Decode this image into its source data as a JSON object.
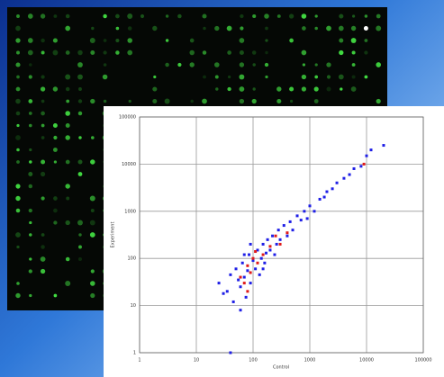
{
  "chart_data": {
    "type": "scatter",
    "xlabel": "Control",
    "ylabel": "Experiment",
    "log_x": true,
    "log_y": true,
    "grid": true,
    "xlim": [
      1,
      100000
    ],
    "ylim": [
      1,
      100000
    ],
    "xticks": [
      1,
      10,
      100,
      1000,
      10000,
      100000
    ],
    "yticks": [
      1,
      10,
      100,
      1000,
      10000,
      100000
    ],
    "series": [
      {
        "color": "#1f1fe6",
        "x": [
          25,
          30,
          40,
          45,
          50,
          55,
          60,
          65,
          70,
          75,
          80,
          85,
          90,
          100,
          110,
          120,
          130,
          140,
          150,
          160,
          170,
          180,
          200,
          220,
          240,
          260,
          280,
          300,
          350,
          400,
          450,
          500,
          600,
          700,
          800,
          900,
          1000,
          1200,
          1500,
          1800,
          2000,
          2500,
          3000,
          4000,
          5000,
          6000,
          8000,
          10000,
          12000,
          20000,
          60,
          90,
          40,
          70,
          150,
          35
        ],
        "y": [
          30,
          18,
          45,
          12,
          60,
          35,
          25,
          80,
          40,
          15,
          55,
          120,
          30,
          90,
          60,
          150,
          45,
          100,
          200,
          80,
          130,
          250,
          150,
          300,
          120,
          200,
          400,
          250,
          500,
          300,
          600,
          400,
          800,
          650,
          1000,
          700,
          1300,
          1000,
          1800,
          2000,
          2600,
          3000,
          4000,
          5000,
          6000,
          8000,
          9000,
          15000,
          20000,
          25000,
          8,
          200,
          1,
          120,
          60,
          20
        ]
      },
      {
        "color": "#e01a1a",
        "x": [
          60,
          70,
          80,
          90,
          100,
          120,
          150,
          200,
          250,
          300,
          400,
          9000,
          80,
          110
        ],
        "y": [
          40,
          30,
          70,
          50,
          100,
          80,
          120,
          180,
          300,
          200,
          350,
          10000,
          20,
          140
        ]
      }
    ]
  }
}
